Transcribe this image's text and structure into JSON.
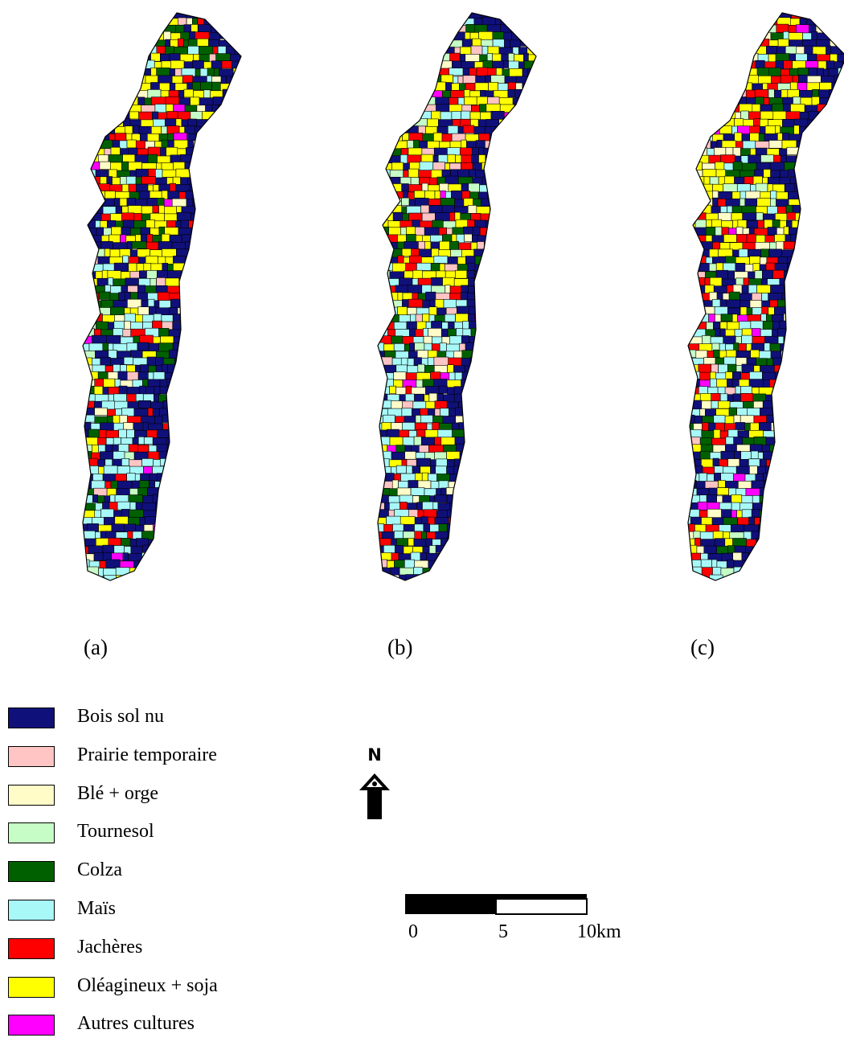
{
  "panels": [
    {
      "label": "(a)"
    },
    {
      "label": "(b)"
    },
    {
      "label": "(c)"
    }
  ],
  "legend": [
    {
      "label": "Bois sol nu",
      "color": "#10107a"
    },
    {
      "label": "Prairie temporaire",
      "color": "#ffc4c4"
    },
    {
      "label": "Blé + orge",
      "color": "#fffcc8"
    },
    {
      "label": "Tournesol",
      "color": "#c6fcc6"
    },
    {
      "label": "Colza",
      "color": "#006000"
    },
    {
      "label": "Maïs",
      "color": "#a8f8f8"
    },
    {
      "label": "Jachères",
      "color": "#ff0000"
    },
    {
      "label": "Oléagineux + soja",
      "color": "#ffff00"
    },
    {
      "label": "Autres cultures",
      "color": "#ff00ff"
    }
  ],
  "north_arrow": {
    "letter": "N"
  },
  "scale_bar": {
    "ticks": [
      "0",
      "5",
      "10km"
    ]
  }
}
